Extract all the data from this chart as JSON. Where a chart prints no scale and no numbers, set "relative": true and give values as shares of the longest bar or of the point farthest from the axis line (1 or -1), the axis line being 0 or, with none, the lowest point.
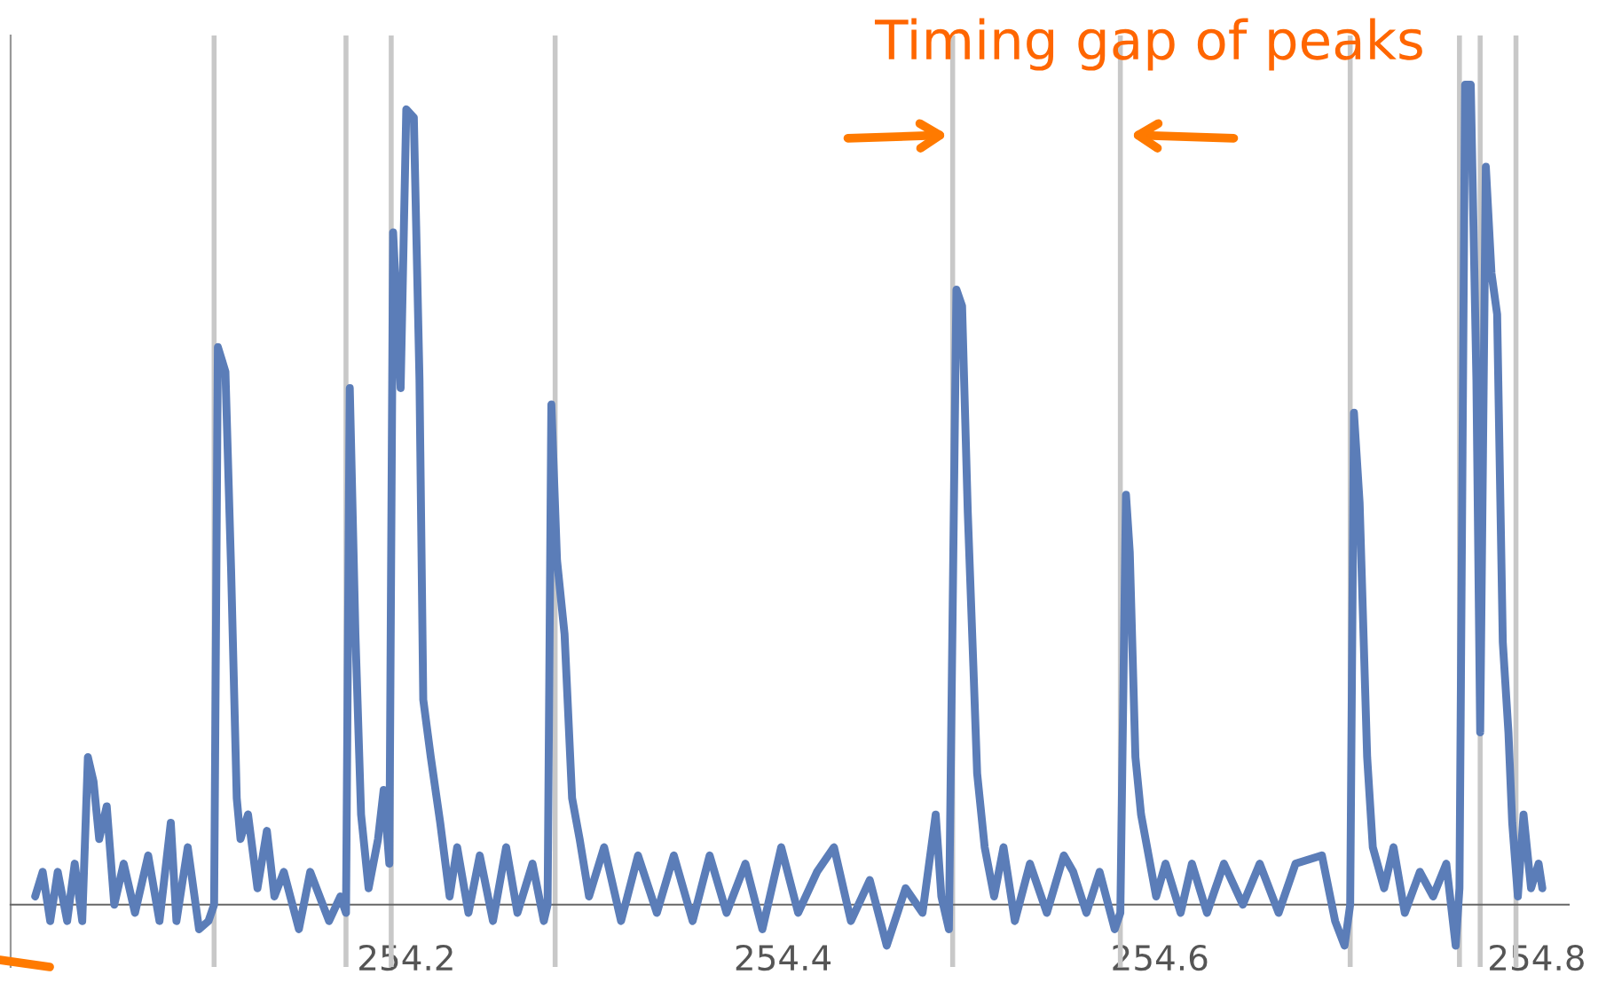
{
  "chart_data": {
    "type": "line",
    "relative": true,
    "xlim": [
      253.99,
      254.817
    ],
    "xticks": [
      254.2,
      254.4,
      254.6,
      254.8
    ],
    "grid": false,
    "legend": false,
    "marker": "none",
    "line_style": "solid",
    "annotations": [
      "Timing gap of peaks"
    ],
    "ref_lines": [
      {
        "axis": "x",
        "value": 254.098,
        "color": "#c8c8c8"
      },
      {
        "axis": "x",
        "value": 254.168,
        "color": "#c8c8c8"
      },
      {
        "axis": "x",
        "value": 254.192,
        "color": "#c8c8c8"
      },
      {
        "axis": "x",
        "value": 254.279,
        "color": "#c8c8c8"
      },
      {
        "axis": "x",
        "value": 254.49,
        "color": "#c8c8c8"
      },
      {
        "axis": "x",
        "value": 254.579,
        "color": "#c8c8c8"
      },
      {
        "axis": "x",
        "value": 254.701,
        "color": "#c8c8c8"
      },
      {
        "axis": "x",
        "value": 254.759,
        "color": "#c8c8c8"
      },
      {
        "axis": "x",
        "value": 254.77,
        "color": "#c8c8c8"
      },
      {
        "axis": "x",
        "value": 254.789,
        "color": "#c8c8c8"
      }
    ],
    "series": [
      {
        "color": "#5b7db8",
        "x": [
          254.003,
          254.007,
          254.011,
          254.015,
          254.02,
          254.024,
          254.028,
          254.031,
          254.034,
          254.037,
          254.041,
          254.045,
          254.05,
          254.056,
          254.063,
          254.069,
          254.075,
          254.078,
          254.084,
          254.09,
          254.095,
          254.098,
          254.1,
          254.104,
          254.107,
          254.11,
          254.112,
          254.116,
          254.121,
          254.126,
          254.13,
          254.135,
          254.143,
          254.149,
          254.159,
          254.165,
          254.168,
          254.17,
          254.173,
          254.176,
          254.18,
          254.185,
          254.188,
          254.191,
          254.193,
          254.197,
          254.2,
          254.204,
          254.207,
          254.209,
          254.213,
          254.218,
          254.223,
          254.227,
          254.233,
          254.239,
          254.246,
          254.253,
          254.259,
          254.267,
          254.273,
          254.275,
          254.277,
          254.28,
          254.284,
          254.288,
          254.292,
          254.297,
          254.305,
          254.314,
          254.323,
          254.333,
          254.342,
          254.352,
          254.361,
          254.37,
          254.38,
          254.389,
          254.399,
          254.408,
          254.418,
          254.427,
          254.436,
          254.446,
          254.455,
          254.465,
          254.474,
          254.481,
          254.484,
          254.488,
          254.492,
          254.495,
          254.498,
          254.501,
          254.503,
          254.507,
          254.512,
          254.517,
          254.523,
          254.531,
          254.54,
          254.549,
          254.554,
          254.561,
          254.568,
          254.576,
          254.579,
          254.582,
          254.584,
          254.587,
          254.59,
          254.594,
          254.598,
          254.603,
          254.611,
          254.617,
          254.625,
          254.634,
          254.644,
          254.653,
          254.663,
          254.672,
          254.686,
          254.693,
          254.698,
          254.701,
          254.703,
          254.706,
          254.71,
          254.713,
          254.719,
          254.724,
          254.73,
          254.738,
          254.745,
          254.752,
          254.757,
          254.759,
          254.762,
          254.765,
          254.768,
          254.77,
          254.773,
          254.776,
          254.779,
          254.782,
          254.785,
          254.787,
          254.79,
          254.793,
          254.797,
          254.801,
          254.803
        ],
        "values": [
          0.01,
          0.04,
          -0.02,
          0.04,
          -0.02,
          0.05,
          -0.02,
          0.18,
          0.15,
          0.08,
          0.12,
          0.0,
          0.05,
          -0.01,
          0.06,
          -0.02,
          0.1,
          -0.02,
          0.07,
          -0.03,
          -0.02,
          0.0,
          0.68,
          0.65,
          0.41,
          0.13,
          0.08,
          0.11,
          0.02,
          0.09,
          0.01,
          0.04,
          -0.03,
          0.04,
          -0.02,
          0.01,
          -0.01,
          0.63,
          0.33,
          0.11,
          0.02,
          0.08,
          0.14,
          0.05,
          0.82,
          0.63,
          0.97,
          0.96,
          0.64,
          0.25,
          0.18,
          0.1,
          0.01,
          0.07,
          -0.01,
          0.06,
          -0.02,
          0.07,
          -0.01,
          0.05,
          -0.02,
          0.0,
          0.61,
          0.42,
          0.33,
          0.13,
          0.08,
          0.01,
          0.07,
          -0.02,
          0.06,
          -0.01,
          0.06,
          -0.02,
          0.06,
          -0.01,
          0.05,
          -0.03,
          0.07,
          -0.01,
          0.04,
          0.07,
          -0.02,
          0.03,
          -0.05,
          0.02,
          -0.01,
          0.11,
          0.01,
          -0.03,
          0.75,
          0.73,
          0.48,
          0.29,
          0.16,
          0.07,
          0.01,
          0.07,
          -0.02,
          0.05,
          -0.01,
          0.06,
          0.04,
          -0.01,
          0.04,
          -0.03,
          -0.01,
          0.5,
          0.43,
          0.18,
          0.11,
          0.06,
          0.01,
          0.05,
          -0.01,
          0.05,
          -0.01,
          0.05,
          0.0,
          0.05,
          -0.01,
          0.05,
          0.06,
          -0.02,
          -0.05,
          0.0,
          0.6,
          0.49,
          0.18,
          0.07,
          0.02,
          0.07,
          -0.01,
          0.04,
          0.01,
          0.05,
          -0.05,
          0.02,
          1.0,
          1.0,
          0.64,
          0.21,
          0.9,
          0.77,
          0.72,
          0.32,
          0.21,
          0.1,
          0.01,
          0.11,
          0.02,
          0.05,
          0.02
        ]
      }
    ]
  }
}
